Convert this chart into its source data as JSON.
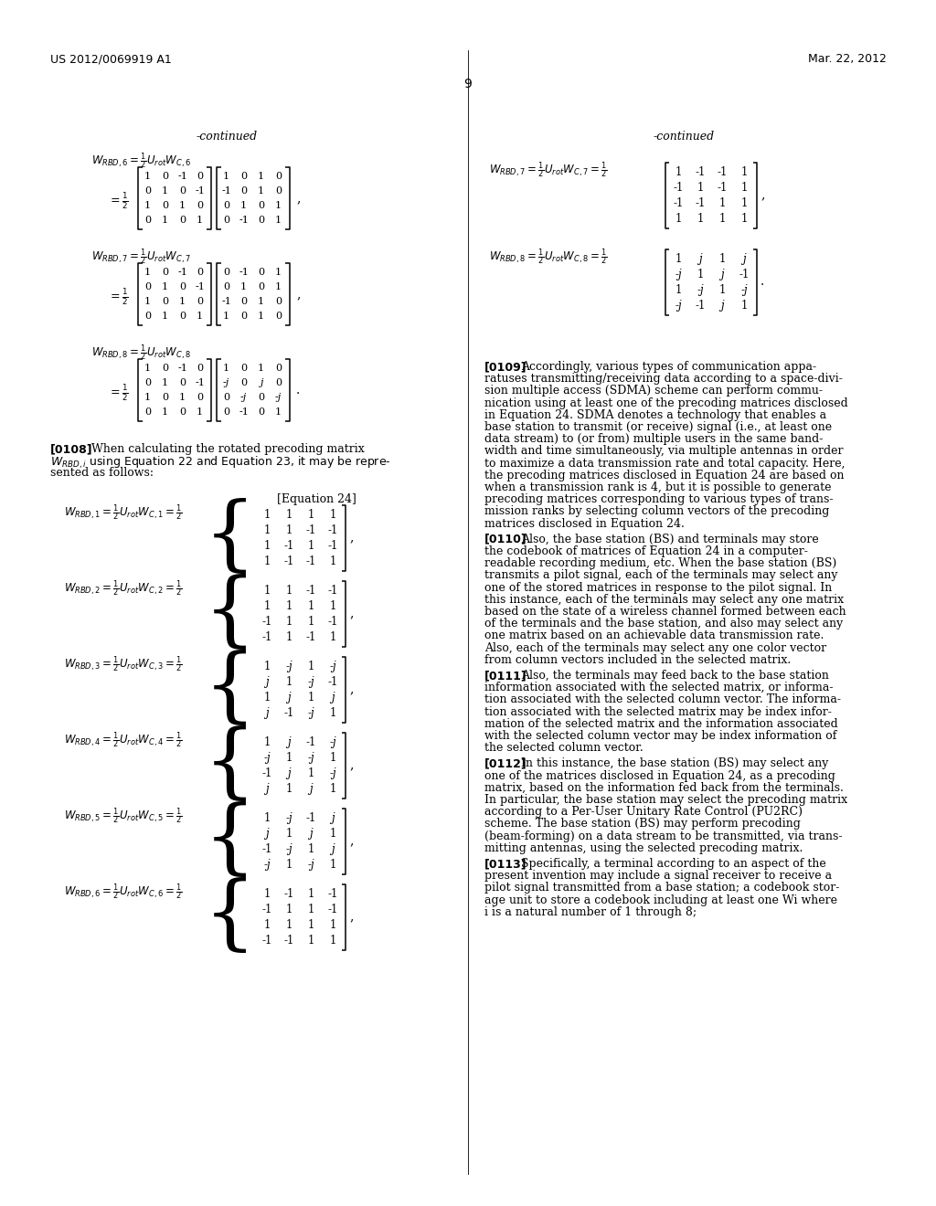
{
  "background_color": "#ffffff",
  "header_left": "US 2012/0069919 A1",
  "header_right": "Mar. 22, 2012",
  "page_number": "9",
  "paragraphs_right": [
    {
      "tag": "[0109]",
      "lines": [
        "Accordingly, various types of communication appa-",
        "ratuses transmitting/receiving data according to a space-divi-",
        "sion multiple access (SDMA) scheme can perform commu-",
        "nication using at least one of the precoding matrices disclosed",
        "in Equation 24. SDMA denotes a technology that enables a",
        "base station to transmit (or receive) signal (i.e., at least one",
        "data stream) to (or from) multiple users in the same band-",
        "width and time simultaneously, via multiple antennas in order",
        "to maximize a data transmission rate and total capacity. Here,",
        "the precoding matrices disclosed in Equation 24 are based on",
        "when a transmission rank is 4, but it is possible to generate",
        "precoding matrices corresponding to various types of trans-",
        "mission ranks by selecting column vectors of the precoding",
        "matrices disclosed in Equation 24."
      ]
    },
    {
      "tag": "[0110]",
      "lines": [
        "Also, the base station (BS) and terminals may store",
        "the codebook of matrices of Equation 24 in a computer-",
        "readable recording medium, etc. When the base station (BS)",
        "transmits a pilot signal, each of the terminals may select any",
        "one of the stored matrices in response to the pilot signal. In",
        "this instance, each of the terminals may select any one matrix",
        "based on the state of a wireless channel formed between each",
        "of the terminals and the base station, and also may select any",
        "one matrix based on an achievable data transmission rate.",
        "Also, each of the terminals may select any one color vector",
        "from column vectors included in the selected matrix."
      ]
    },
    {
      "tag": "[0111]",
      "lines": [
        "Also, the terminals may feed back to the base station",
        "information associated with the selected matrix, or informa-",
        "tion associated with the selected column vector. The informa-",
        "tion associated with the selected matrix may be index infor-",
        "mation of the selected matrix and the information associated",
        "with the selected column vector may be index information of",
        "the selected column vector."
      ]
    },
    {
      "tag": "[0112]",
      "lines": [
        "In this instance, the base station (BS) may select any",
        "one of the matrices disclosed in Equation 24, as a precoding",
        "matrix, based on the information fed back from the terminals.",
        "In particular, the base station may select the precoding matrix",
        "according to a Per-User Unitary Rate Control (PU2RC)",
        "scheme. The base station (BS) may perform precoding",
        "(beam-forming) on a data stream to be transmitted, via trans-",
        "mitting antennas, using the selected precoding matrix."
      ]
    },
    {
      "tag": "[0113]",
      "lines": [
        "Specifically, a terminal according to an aspect of the",
        "present invention may include a signal receiver to receive a",
        "pilot signal transmitted from a base station; a codebook stor-",
        "age unit to store a codebook including at least one Wi where",
        "i is a natural number of 1 through 8;"
      ]
    }
  ]
}
